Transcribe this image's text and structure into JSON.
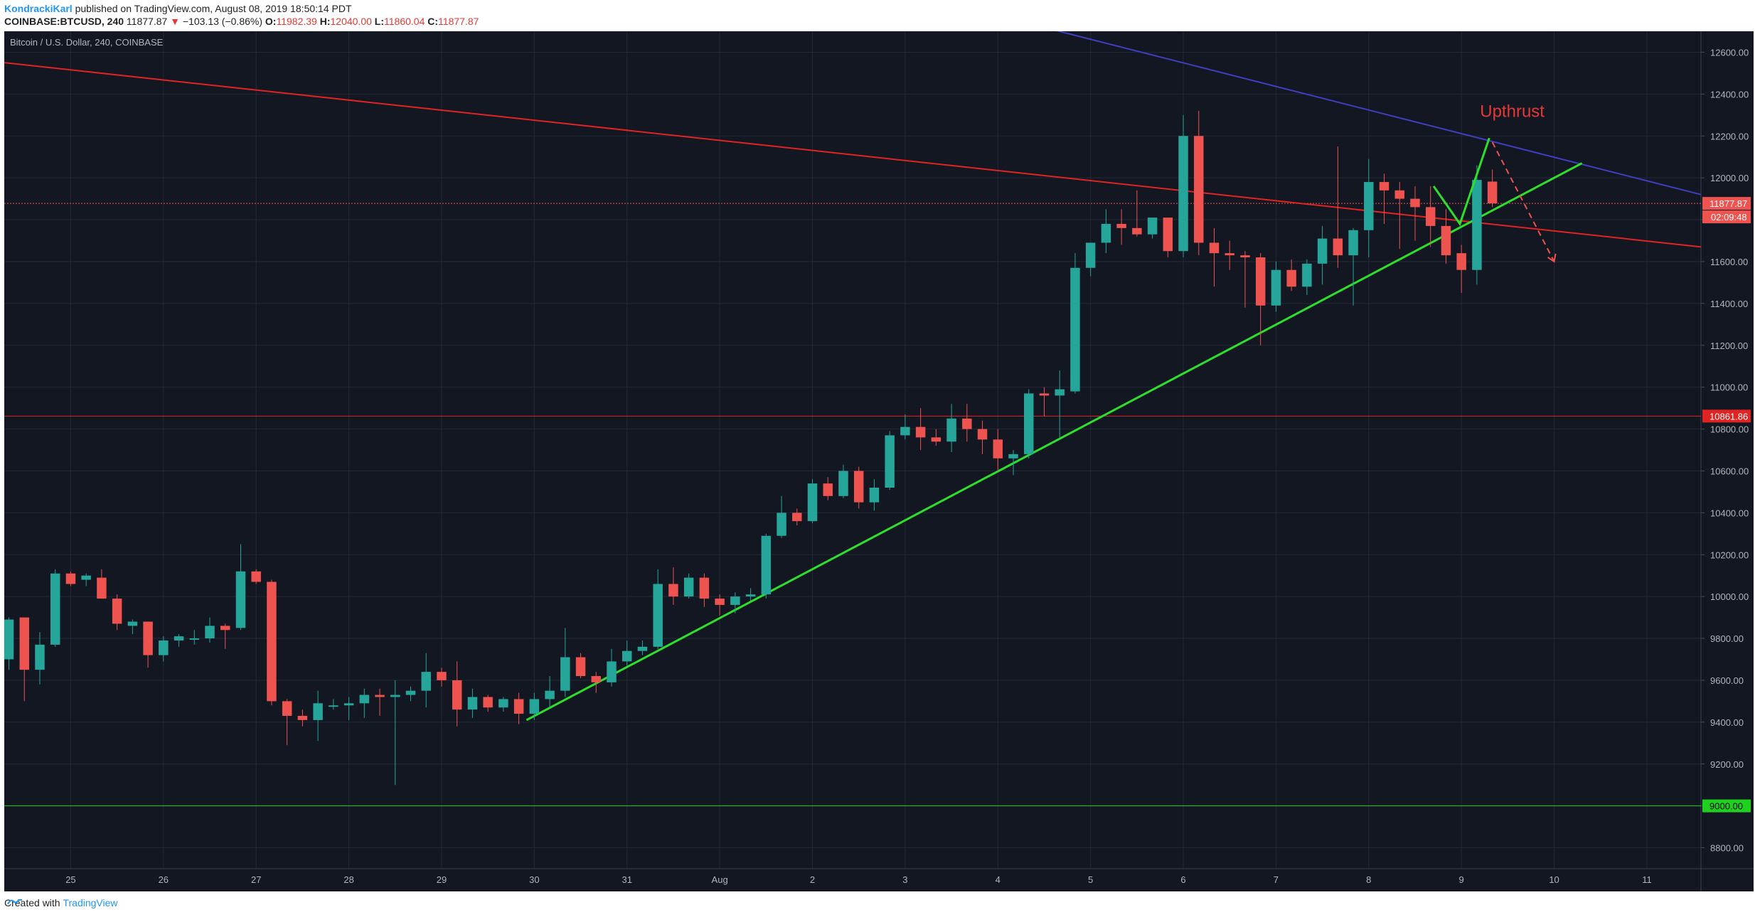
{
  "header": {
    "author": "KondrackiKarl",
    "published": "published on TradingView.com, August 08, 2019 18:50:14 PDT",
    "symbol": "COINBASE:BTCUSD, 240",
    "last": "11877.87",
    "change_arrow": "▼",
    "change": "−103.13 (−0.86%)",
    "o_label": "O:",
    "o_val": "11982.39",
    "h_label": "H:",
    "h_val": "12040.00",
    "l_label": "L:",
    "l_val": "11860.04",
    "c_label": "C:",
    "c_val": "11877.87"
  },
  "footer": {
    "created": "Created with",
    "brand": "TradingView"
  },
  "chart_data": {
    "type": "candlestick",
    "title": "Bitcoin / U.S. Dollar, 240, COINBASE",
    "ylim": [
      8700,
      12700
    ],
    "y_ticks": [
      "8800.00",
      "9000.00",
      "9200.00",
      "9400.00",
      "9600.00",
      "9800.00",
      "10000.00",
      "10200.00",
      "10400.00",
      "10600.00",
      "10800.00",
      "11000.00",
      "11200.00",
      "11400.00",
      "11600.00",
      "11800.00",
      "12000.00",
      "12200.00",
      "12400.00",
      "12600.00"
    ],
    "x_ticks": [
      {
        "label": "25",
        "i": 4
      },
      {
        "label": "26",
        "i": 10
      },
      {
        "label": "27",
        "i": 16
      },
      {
        "label": "28",
        "i": 22
      },
      {
        "label": "29",
        "i": 28
      },
      {
        "label": "30",
        "i": 34
      },
      {
        "label": "31",
        "i": 40
      },
      {
        "label": "Aug",
        "i": 46
      },
      {
        "label": "2",
        "i": 52
      },
      {
        "label": "3",
        "i": 58
      },
      {
        "label": "4",
        "i": 64
      },
      {
        "label": "5",
        "i": 70
      },
      {
        "label": "6",
        "i": 76
      },
      {
        "label": "7",
        "i": 82
      },
      {
        "label": "8",
        "i": 88
      },
      {
        "label": "9",
        "i": 94
      },
      {
        "label": "10",
        "i": 100
      },
      {
        "label": "11",
        "i": 106
      }
    ],
    "colors": {
      "up": "#26a69a",
      "down": "#ef5350",
      "background": "#131722",
      "grid": "#232838",
      "text": "#b2b5be"
    },
    "candles": [
      [
        9700,
        9900,
        9650,
        9890
      ],
      [
        9900,
        9900,
        9500,
        9650
      ],
      [
        9650,
        9830,
        9580,
        9770
      ],
      [
        9770,
        10130,
        9760,
        10110
      ],
      [
        10110,
        10120,
        10050,
        10060
      ],
      [
        10080,
        10110,
        10050,
        10100
      ],
      [
        10090,
        10130,
        9990,
        9990
      ],
      [
        9990,
        10010,
        9840,
        9870
      ],
      [
        9860,
        9890,
        9820,
        9880
      ],
      [
        9880,
        9880,
        9660,
        9720
      ],
      [
        9720,
        9810,
        9690,
        9790
      ],
      [
        9790,
        9820,
        9760,
        9810
      ],
      [
        9800,
        9840,
        9770,
        9800
      ],
      [
        9800,
        9900,
        9780,
        9860
      ],
      [
        9860,
        9870,
        9750,
        9840
      ],
      [
        9850,
        10250,
        9840,
        10120
      ],
      [
        10120,
        10130,
        10060,
        10070
      ],
      [
        10070,
        10080,
        9480,
        9500
      ],
      [
        9500,
        9510,
        9290,
        9430
      ],
      [
        9430,
        9460,
        9380,
        9410
      ],
      [
        9410,
        9550,
        9310,
        9490
      ],
      [
        9480,
        9510,
        9460,
        9480
      ],
      [
        9480,
        9520,
        9410,
        9490
      ],
      [
        9490,
        9560,
        9420,
        9530
      ],
      [
        9530,
        9560,
        9430,
        9520
      ],
      [
        9520,
        9600,
        9100,
        9530
      ],
      [
        9530,
        9570,
        9500,
        9550
      ],
      [
        9550,
        9730,
        9470,
        9640
      ],
      [
        9640,
        9660,
        9570,
        9600
      ],
      [
        9600,
        9690,
        9380,
        9460
      ],
      [
        9460,
        9560,
        9420,
        9520
      ],
      [
        9520,
        9530,
        9450,
        9470
      ],
      [
        9470,
        9520,
        9450,
        9510
      ],
      [
        9510,
        9540,
        9390,
        9440
      ],
      [
        9440,
        9540,
        9410,
        9510
      ],
      [
        9510,
        9620,
        9470,
        9550
      ],
      [
        9550,
        9850,
        9520,
        9710
      ],
      [
        9710,
        9730,
        9610,
        9620
      ],
      [
        9620,
        9640,
        9540,
        9590
      ],
      [
        9590,
        9750,
        9570,
        9690
      ],
      [
        9690,
        9790,
        9670,
        9740
      ],
      [
        9740,
        9790,
        9720,
        9760
      ],
      [
        9760,
        10130,
        9750,
        10060
      ],
      [
        10060,
        10140,
        9960,
        10000
      ],
      [
        10000,
        10110,
        9990,
        10090
      ],
      [
        10090,
        10110,
        9950,
        9990
      ],
      [
        9990,
        10010,
        9910,
        9960
      ],
      [
        9960,
        10020,
        9920,
        10000
      ],
      [
        10000,
        10040,
        9980,
        10010
      ],
      [
        10010,
        10300,
        9990,
        10290
      ],
      [
        10290,
        10480,
        10280,
        10400
      ],
      [
        10400,
        10420,
        10340,
        10360
      ],
      [
        10360,
        10560,
        10350,
        10540
      ],
      [
        10540,
        10570,
        10460,
        10480
      ],
      [
        10480,
        10630,
        10470,
        10600
      ],
      [
        10600,
        10620,
        10420,
        10450
      ],
      [
        10450,
        10560,
        10410,
        10520
      ],
      [
        10520,
        10790,
        10510,
        10770
      ],
      [
        10770,
        10870,
        10750,
        10810
      ],
      [
        10810,
        10900,
        10700,
        10760
      ],
      [
        10760,
        10800,
        10720,
        10740
      ],
      [
        10740,
        10920,
        10690,
        10850
      ],
      [
        10850,
        10920,
        10740,
        10800
      ],
      [
        10800,
        10840,
        10680,
        10750
      ],
      [
        10750,
        10800,
        10600,
        10660
      ],
      [
        10660,
        10700,
        10580,
        10680
      ],
      [
        10680,
        10990,
        10660,
        10970
      ],
      [
        10970,
        11000,
        10860,
        10960
      ],
      [
        10960,
        11080,
        10760,
        10990
      ],
      [
        10980,
        11640,
        10970,
        11570
      ],
      [
        11570,
        11690,
        11530,
        11690
      ],
      [
        11690,
        11850,
        11640,
        11780
      ],
      [
        11780,
        11850,
        11680,
        11760
      ],
      [
        11760,
        11940,
        11720,
        11730
      ],
      [
        11730,
        11810,
        11710,
        11810
      ],
      [
        11810,
        11810,
        11620,
        11650
      ],
      [
        11650,
        12300,
        11620,
        12200
      ],
      [
        12200,
        12320,
        11630,
        11690
      ],
      [
        11690,
        11760,
        11480,
        11640
      ],
      [
        11640,
        11700,
        11560,
        11630
      ],
      [
        11630,
        11650,
        11380,
        11620
      ],
      [
        11620,
        11640,
        11200,
        11390
      ],
      [
        11390,
        11600,
        11360,
        11560
      ],
      [
        11560,
        11610,
        11460,
        11480
      ],
      [
        11480,
        11610,
        11440,
        11590
      ],
      [
        11590,
        11770,
        11490,
        11710
      ],
      [
        11710,
        12150,
        11570,
        11630
      ],
      [
        11630,
        11760,
        11390,
        11750
      ],
      [
        11750,
        12090,
        11620,
        11980
      ],
      [
        11980,
        12020,
        11780,
        11940
      ],
      [
        11940,
        11980,
        11660,
        11900
      ],
      [
        11900,
        11960,
        11700,
        11860
      ],
      [
        11860,
        11960,
        11670,
        11770
      ],
      [
        11770,
        11850,
        11590,
        11630
      ],
      [
        11640,
        11680,
        11450,
        11560
      ],
      [
        11560,
        12060,
        11490,
        11990
      ],
      [
        11982,
        12040,
        11860,
        11878
      ]
    ],
    "hlines": [
      {
        "y": 11877.87,
        "color": "#ef5350",
        "style": "dotted",
        "label": "11877.87",
        "sublabel": "02:09:48"
      },
      {
        "y": 10861.86,
        "color": "#e02424",
        "style": "solid",
        "label": "10861.86"
      },
      {
        "y": 9000.0,
        "color": "#1fd11f",
        "style": "solid",
        "label": "9000.00"
      }
    ],
    "trendlines": [
      {
        "color": "#e02424",
        "x1": -0.3,
        "y1": 12550,
        "x2": 109.5,
        "y2": 11670
      },
      {
        "color": "#3f3fc0",
        "x1": 66.9,
        "y1": 12720,
        "x2": 109.5,
        "y2": 11920
      },
      {
        "color": "#2ee02e",
        "x1": 33.5,
        "y1": 9410,
        "x2": 101.8,
        "y2": 12070
      }
    ],
    "projection": {
      "up": [
        {
          "x": 92.2,
          "y": 11960
        },
        {
          "x": 93.9,
          "y": 11780
        },
        {
          "x": 95.8,
          "y": 12190
        }
      ],
      "down": [
        {
          "x": 96.0,
          "y": 12170
        },
        {
          "x": 100,
          "y": 11600
        }
      ]
    },
    "annotation": {
      "text": "Upthrust",
      "x": 95.2,
      "y": 12290,
      "color": "#e53935"
    }
  }
}
